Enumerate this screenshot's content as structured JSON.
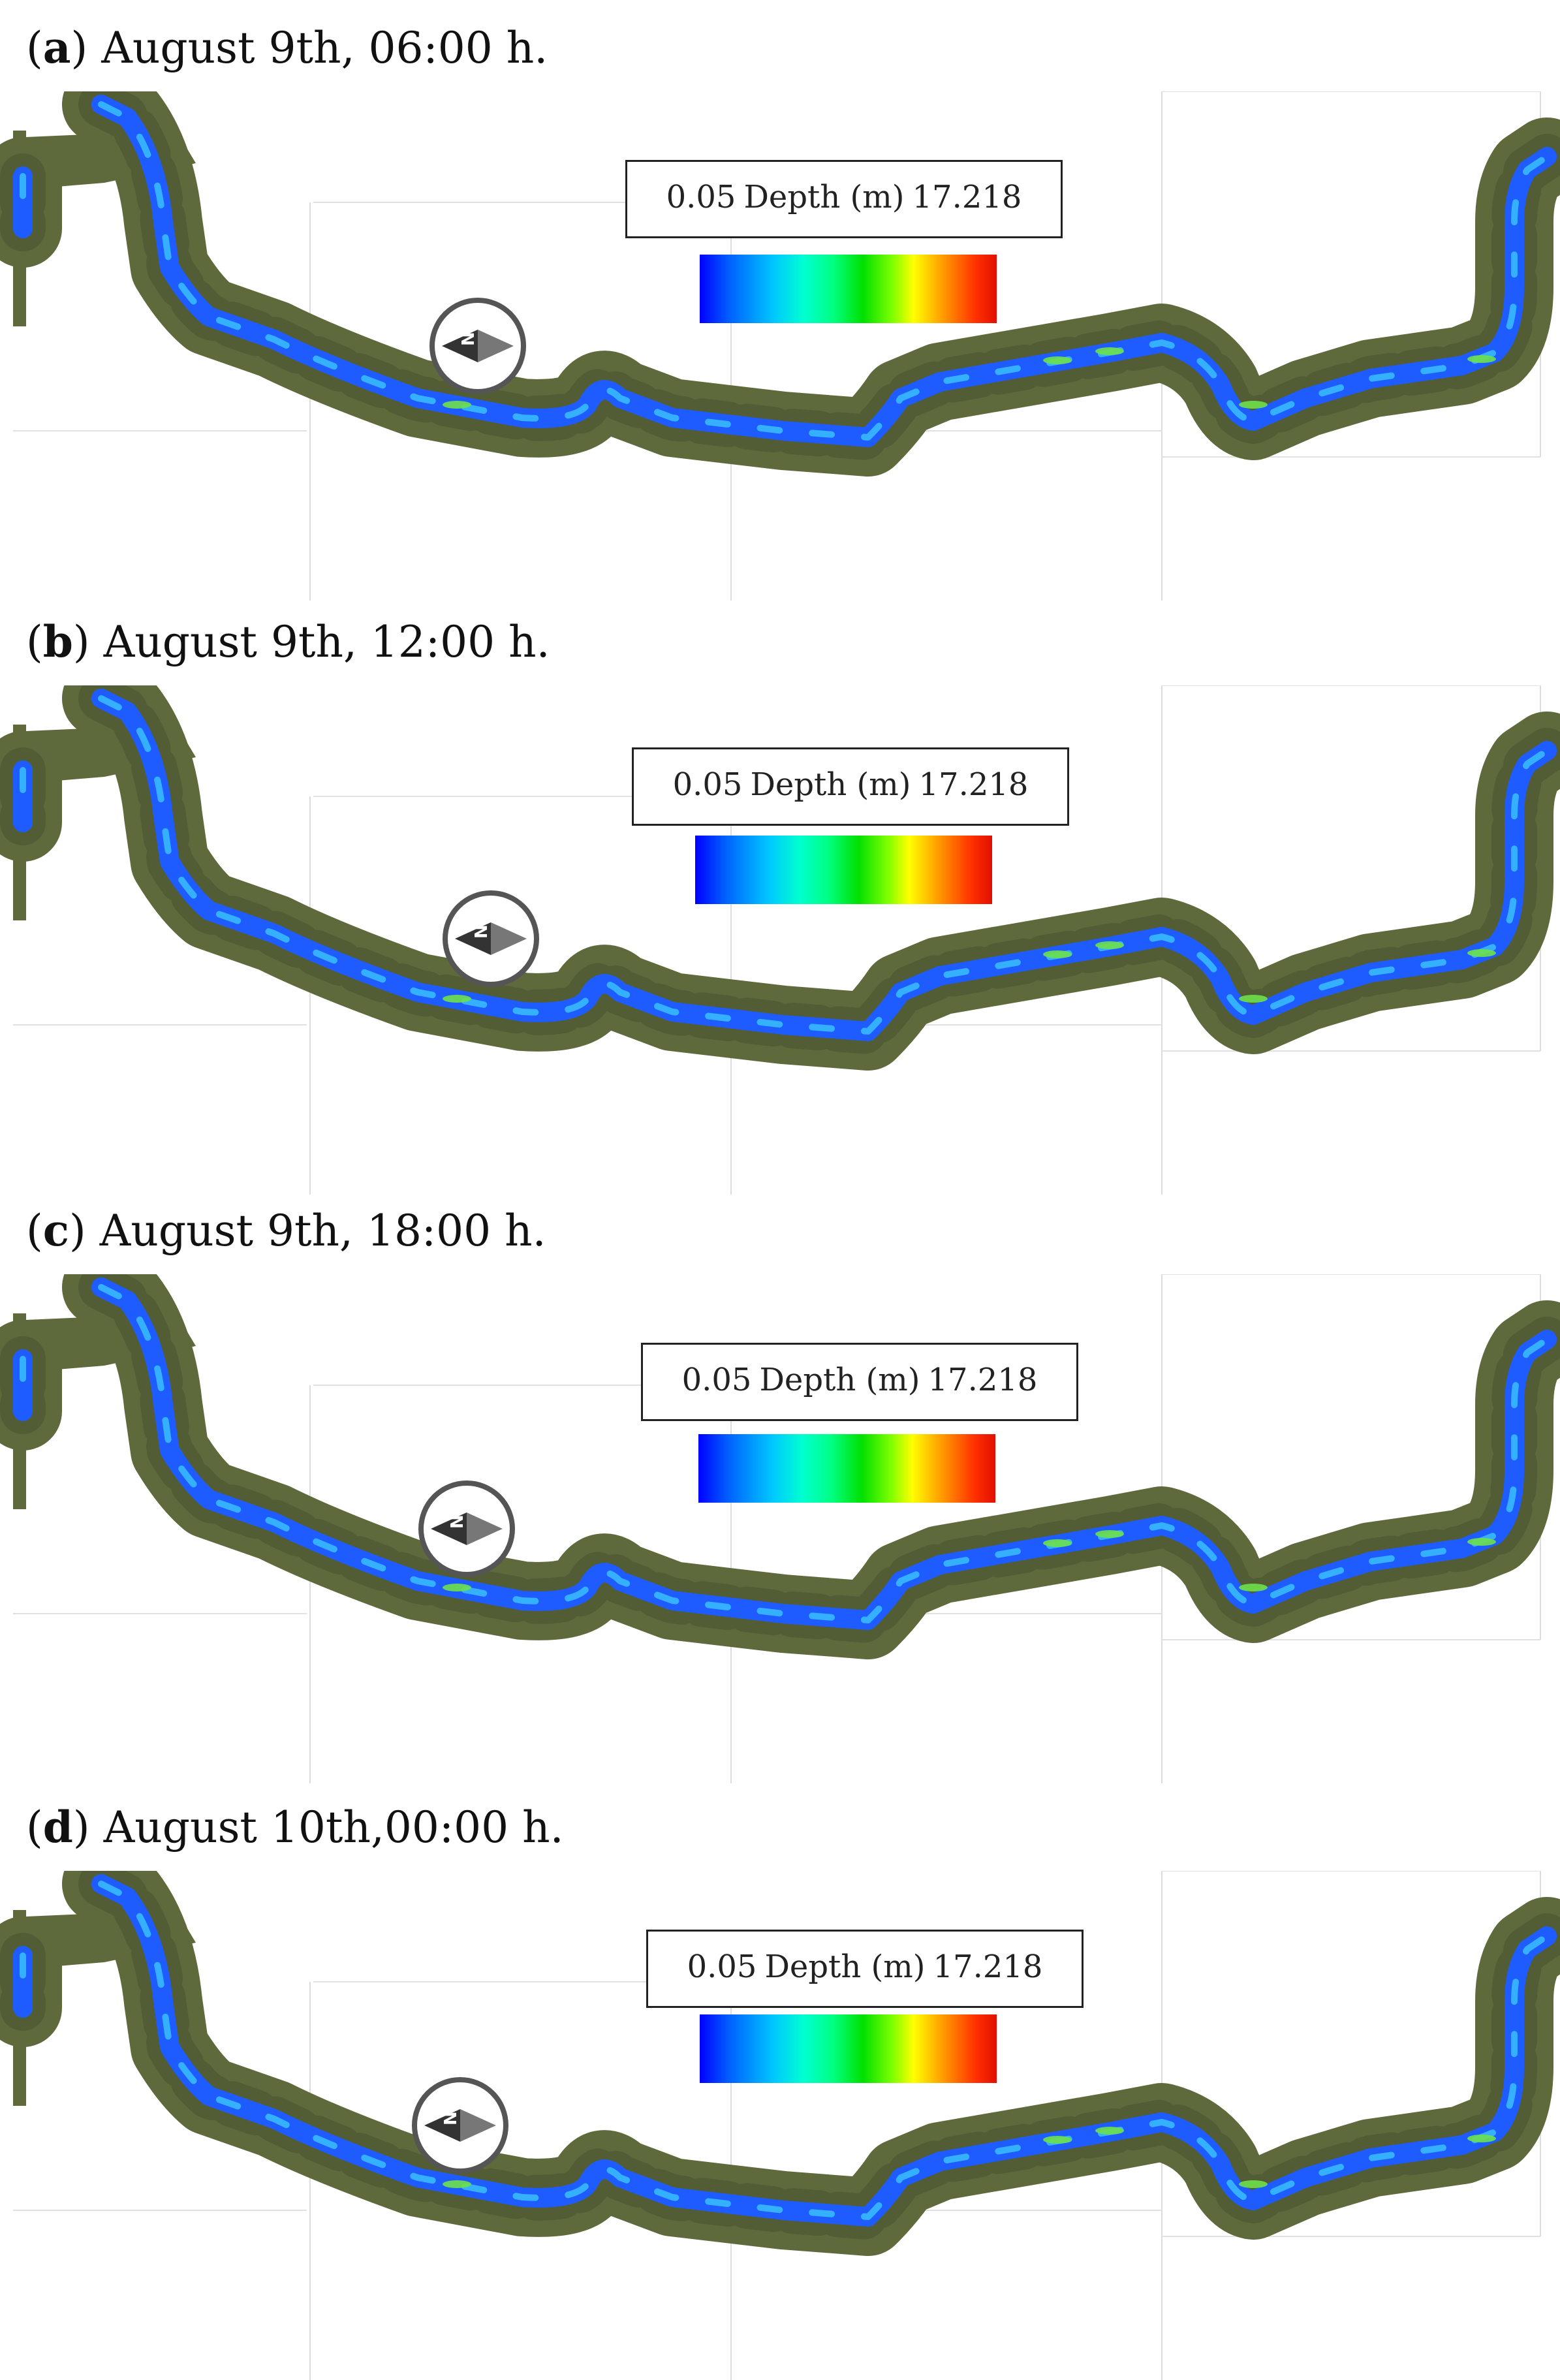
{
  "panels": [
    {
      "letter": "a",
      "caption": "August 9th, 06:00 h."
    },
    {
      "letter": "b",
      "caption": "August 9th, 12:00 h."
    },
    {
      "letter": "c",
      "caption": "August 9th, 18:00 h."
    },
    {
      "letter": "d",
      "caption": "August 10th,00:00 h."
    }
  ],
  "legend": {
    "min_label": "0.05",
    "title": "Depth (m)",
    "max_label": "17.218",
    "colors": [
      "#0000ff",
      "#00c8ff",
      "#00ffd0",
      "#00e000",
      "#80ff00",
      "#ffff00",
      "#ff9a00",
      "#e01000"
    ]
  },
  "compass": {
    "icon": "north-arrow-compass-icon",
    "label": "N"
  },
  "colors": {
    "terrain": "#5f6a3c",
    "terrain_dark": "#4a5530",
    "water": "#1f5cff",
    "water_light": "#35b0ff"
  }
}
